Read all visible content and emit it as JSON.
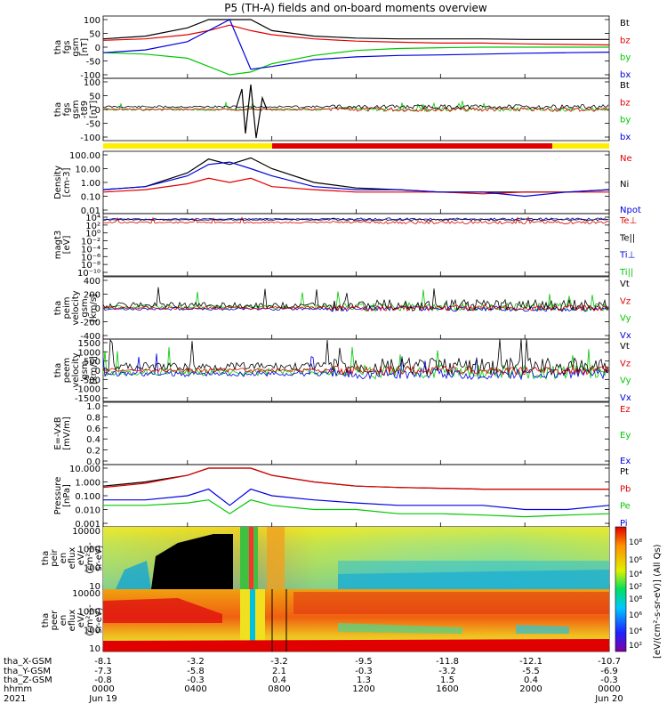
{
  "title": "P5 (TH-A) fields and on-board moments overview",
  "panels": [
    {
      "id": "p1",
      "ylabel": [
        "tha",
        "fgs",
        "gsm",
        "[nT]"
      ],
      "yticks": [
        "100",
        "50",
        "0",
        "-50",
        "-100"
      ],
      "legend": [
        {
          "text": "Bt",
          "color": "#000000"
        },
        {
          "text": "bz",
          "color": "#e00000"
        },
        {
          "text": "by",
          "color": "#00c800"
        },
        {
          "text": "bx",
          "color": "#0000e0"
        }
      ]
    },
    {
      "id": "p2",
      "ylabel": [
        "tha",
        "fgs",
        "gsm",
        "-t89",
        "[nT]"
      ],
      "yticks": [
        "100",
        "50",
        "0",
        "-50",
        "-100"
      ],
      "legend": [
        {
          "text": "Bt",
          "color": "#000000"
        },
        {
          "text": "bz",
          "color": "#e00000"
        },
        {
          "text": "by",
          "color": "#00c800"
        },
        {
          "text": "bx",
          "color": "#0000e0"
        }
      ]
    },
    {
      "id": "p3",
      "ylabel": [
        "Density",
        "[cm-3]"
      ],
      "yticks": [
        "100.00",
        "10.00",
        "1.00",
        "0.10",
        "0.01"
      ],
      "legend": [
        {
          "text": "Ne",
          "color": "#e00000"
        },
        {
          "text": "Ni",
          "color": "#000000"
        },
        {
          "text": "Npot",
          "color": "#0000e0"
        }
      ]
    },
    {
      "id": "p4",
      "ylabel": [
        "magt3",
        "[eV]"
      ],
      "yticks": [
        "10⁴",
        "10²",
        "10⁰",
        "10⁻²",
        "10⁻⁴",
        "10⁻⁶",
        "10⁻⁸",
        "10⁻¹⁰"
      ],
      "legend": [
        {
          "text": "Te⊥",
          "color": "#e00000"
        },
        {
          "text": "Te||",
          "color": "#000000"
        },
        {
          "text": "Ti⊥",
          "color": "#0000e0"
        },
        {
          "text": "Ti||",
          "color": "#00c800"
        }
      ]
    },
    {
      "id": "p5",
      "ylabel": [
        "tha",
        "peim",
        "velocity",
        "gsm",
        "[km/s]"
      ],
      "yticks": [
        "400",
        "200",
        "0",
        "-200",
        "-400"
      ],
      "legend": [
        {
          "text": "Vt",
          "color": "#000000"
        },
        {
          "text": "Vz",
          "color": "#e00000"
        },
        {
          "text": "Vy",
          "color": "#00c800"
        },
        {
          "text": "Vx",
          "color": "#0000e0"
        }
      ]
    },
    {
      "id": "p6",
      "ylabel": [
        "tha",
        "peem",
        "velocity",
        "gsm",
        "[km/s]"
      ],
      "yticks": [
        "1500",
        "1000",
        "500",
        "0",
        "-500",
        "-1000",
        "-1500"
      ],
      "legend": [
        {
          "text": "Vt",
          "color": "#000000"
        },
        {
          "text": "Vz",
          "color": "#e00000"
        },
        {
          "text": "Vy",
          "color": "#00c800"
        },
        {
          "text": "Vx",
          "color": "#0000e0"
        }
      ]
    },
    {
      "id": "p7",
      "ylabel": [
        "E=-VxB",
        "[mV/m]"
      ],
      "yticks": [
        "1.0",
        "0.8",
        "0.6",
        "0.4",
        "0.2",
        "0.0"
      ],
      "legend": [
        {
          "text": "Ez",
          "color": "#e00000"
        },
        {
          "text": "Ey",
          "color": "#00c800"
        },
        {
          "text": "Ex",
          "color": "#0000e0"
        }
      ]
    },
    {
      "id": "p8",
      "ylabel": [
        "Pressure",
        "[nPa]"
      ],
      "yticks": [
        "10.000",
        "1.000",
        "0.100",
        "0.010",
        "0.001"
      ],
      "legend": [
        {
          "text": "Pt",
          "color": "#000000"
        },
        {
          "text": "Pb",
          "color": "#e00000"
        },
        {
          "text": "Pe",
          "color": "#00c800"
        },
        {
          "text": "Pi",
          "color": "#0000e0"
        }
      ]
    },
    {
      "id": "p9",
      "ylabel": [
        "tha",
        "peir",
        "en",
        "eflux",
        "eV/",
        "(cm²-s-",
        "sr-eV)"
      ],
      "yticks": [
        "10000",
        "1000",
        "100",
        "10"
      ],
      "legend": []
    },
    {
      "id": "p10",
      "ylabel": [
        "tha",
        "peer",
        "en",
        "eflux",
        "eV/",
        "(cm²-s-",
        "sr-eV)"
      ],
      "yticks": [
        "10000",
        "1000",
        "100",
        "10"
      ],
      "legend": []
    }
  ],
  "colorbar": {
    "label": "[eV/(cm²-s-sr-eV)] (All Qs)",
    "ticks_top": [
      "10⁸",
      "10⁶",
      "10⁴",
      "10²"
    ],
    "ticks_bottom": [
      "10⁸",
      "10⁶",
      "10⁴",
      "10²"
    ]
  },
  "xaxis": {
    "rows": [
      {
        "label": "tha_X-GSM",
        "values": [
          "-8.1",
          "-3.2",
          "-3.2",
          "-9.5",
          "-11.8",
          "-12.1",
          "-10.7"
        ]
      },
      {
        "label": "tha_Y-GSM",
        "values": [
          "-7.3",
          "-5.8",
          "2.1",
          "-0.3",
          "-3.2",
          "-5.5",
          "-6.9"
        ]
      },
      {
        "label": "tha_Z-GSM",
        "values": [
          "-0.8",
          "-0.3",
          "0.4",
          "1.3",
          "1.5",
          "0.4",
          "-0.3"
        ]
      },
      {
        "label": "hhmm",
        "values": [
          "0000",
          "0400",
          "0800",
          "1200",
          "1600",
          "2000",
          "0000"
        ]
      },
      {
        "label": "2021",
        "values": [
          "Jun 19",
          "",
          "",
          "",
          "",
          "",
          "Jun 20"
        ]
      }
    ]
  },
  "chart_data": {
    "type": "line",
    "title": "P5 (TH-A) fields and on-board moments overview",
    "time_hours": [
      0,
      2,
      4,
      5,
      6,
      7,
      8,
      10,
      12,
      14,
      16,
      18,
      20,
      22,
      24
    ],
    "series": [
      {
        "panel": "p1",
        "name": "Bt",
        "values": [
          30,
          40,
          70,
          100,
          100,
          100,
          60,
          40,
          33,
          30,
          30,
          30,
          28,
          28,
          28
        ]
      },
      {
        "panel": "p1",
        "name": "bz",
        "values": [
          25,
          30,
          45,
          60,
          80,
          60,
          45,
          30,
          22,
          18,
          15,
          15,
          12,
          10,
          8
        ]
      },
      {
        "panel": "p1",
        "name": "by",
        "values": [
          -20,
          -25,
          -40,
          -70,
          -100,
          -90,
          -60,
          -30,
          -12,
          -5,
          -2,
          0,
          0,
          0,
          0
        ]
      },
      {
        "panel": "p1",
        "name": "bx",
        "values": [
          -20,
          -10,
          20,
          60,
          100,
          -80,
          -70,
          -45,
          -35,
          -30,
          -28,
          -25,
          -22,
          -20,
          -18
        ]
      },
      {
        "panel": "p3",
        "name": "Ni",
        "values": [
          0.3,
          0.5,
          5,
          50,
          20,
          60,
          10,
          1,
          0.4,
          0.3,
          0.2,
          0.2,
          0.2,
          0.2,
          0.3
        ]
      },
      {
        "panel": "p3",
        "name": "Ne",
        "values": [
          0.2,
          0.3,
          0.8,
          2,
          1,
          2,
          0.5,
          0.3,
          0.2,
          0.2,
          0.2,
          0.15,
          0.2,
          0.2,
          0.2
        ]
      },
      {
        "panel": "p3",
        "name": "Npot",
        "values": [
          0.3,
          0.5,
          3,
          20,
          30,
          10,
          3,
          0.5,
          0.3,
          0.3,
          0.2,
          0.2,
          0.1,
          0.2,
          0.3
        ]
      },
      {
        "panel": "p8",
        "name": "Pt",
        "values": [
          0.5,
          1,
          3,
          10,
          10,
          10,
          3,
          1,
          0.5,
          0.4,
          0.35,
          0.3,
          0.3,
          0.3,
          0.3
        ]
      },
      {
        "panel": "p8",
        "name": "Pb",
        "values": [
          0.4,
          0.8,
          3,
          10,
          10,
          10,
          3,
          1,
          0.5,
          0.4,
          0.35,
          0.3,
          0.3,
          0.3,
          0.3
        ]
      },
      {
        "panel": "p8",
        "name": "Pe",
        "values": [
          0.02,
          0.02,
          0.03,
          0.05,
          0.005,
          0.05,
          0.02,
          0.01,
          0.01,
          0.005,
          0.005,
          0.004,
          0.003,
          0.004,
          0.005
        ]
      },
      {
        "panel": "p8",
        "name": "Pi",
        "values": [
          0.05,
          0.05,
          0.1,
          0.3,
          0.02,
          0.3,
          0.1,
          0.05,
          0.03,
          0.02,
          0.02,
          0.02,
          0.01,
          0.01,
          0.02
        ]
      }
    ],
    "xlabel": "hhmm",
    "xlim": [
      0,
      24
    ]
  }
}
